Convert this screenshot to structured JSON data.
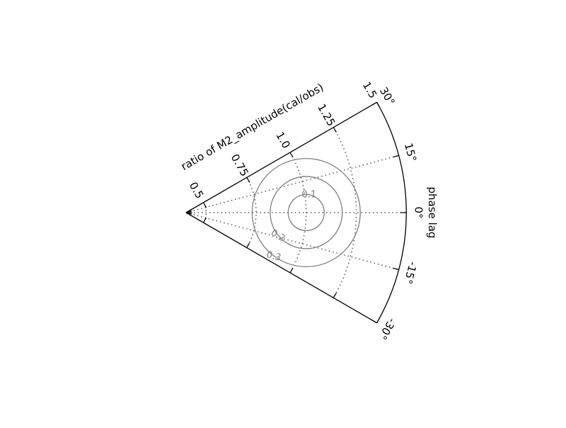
{
  "chart_data": {
    "type": "polar-contour",
    "theta_label": "phase lag",
    "r_label": "ratio of M2_amplitude(cal/obs)",
    "theta_range": [
      -30,
      30
    ],
    "r_range": [
      0.4,
      1.5
    ],
    "theta_ticks": [
      30,
      15,
      0,
      -15,
      -30
    ],
    "theta_tick_labels": [
      "30°",
      "15°",
      "0°",
      "-15°",
      "-30°"
    ],
    "r_ticks": [
      0.5,
      0.75,
      1.0,
      1.25,
      1.5
    ],
    "r_tick_labels": [
      "0.5",
      "0.75",
      "1.0",
      "1.25",
      "1.5"
    ],
    "grid": true,
    "contours": [
      {
        "level": 0.1,
        "label": "0.1",
        "radius_in_ratio_units": 0.1
      },
      {
        "level": 0.2,
        "label": "0.2",
        "radius_in_ratio_units": 0.2
      },
      {
        "level": 0.3,
        "label": "0.3",
        "radius_in_ratio_units": 0.3
      }
    ],
    "contour_center": {
      "ratio": 1.0,
      "phase_lag": 0
    },
    "colors": {
      "axes": "#000000",
      "grid": "#555555",
      "contour": "#808080",
      "contour_label": "#808080"
    }
  }
}
